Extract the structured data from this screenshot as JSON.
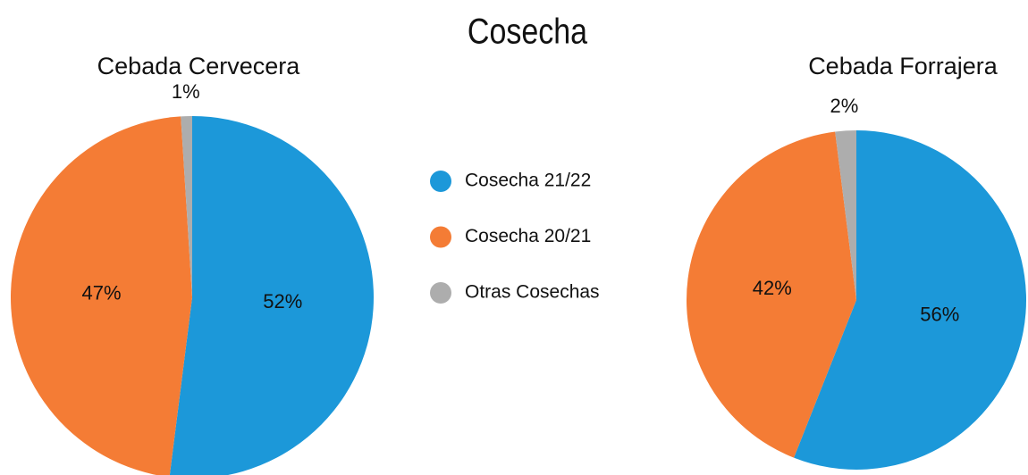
{
  "title": "Cosecha",
  "chart_data": [
    {
      "type": "pie",
      "title": "Cebada Cervecera",
      "categories": [
        "Cosecha 21/22",
        "Cosecha 20/21",
        "Otras Cosechas"
      ],
      "values": [
        52,
        47,
        1
      ],
      "value_labels": [
        "52%",
        "47%",
        "1%"
      ],
      "colors": [
        "#1c98d9",
        "#f47c35",
        "#adadad"
      ]
    },
    {
      "type": "pie",
      "title": "Cebada Forrajera",
      "categories": [
        "Cosecha 21/22",
        "Cosecha 20/21",
        "Otras Cosechas"
      ],
      "values": [
        56,
        42,
        2
      ],
      "value_labels": [
        "56%",
        "42%",
        "2%"
      ],
      "colors": [
        "#1c98d9",
        "#f47c35",
        "#adadad"
      ]
    }
  ]
}
